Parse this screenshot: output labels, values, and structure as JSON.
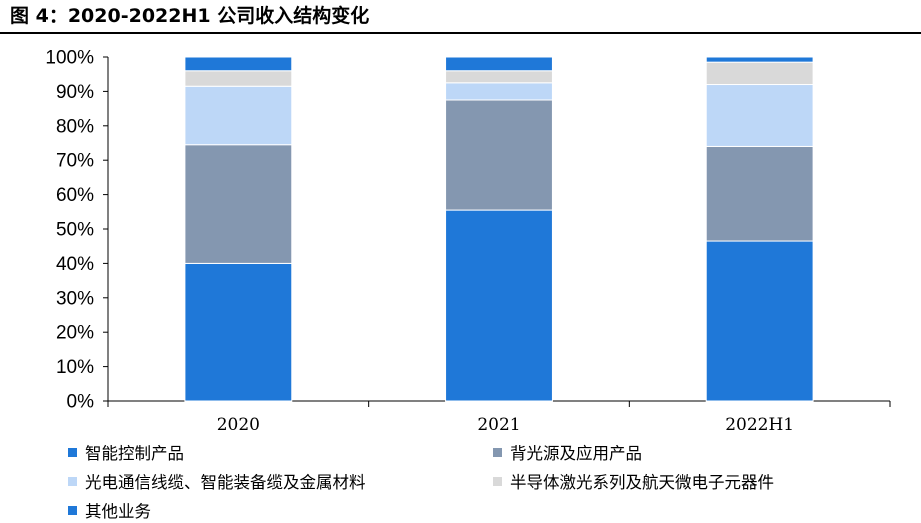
{
  "title": "图 4：2020-2022H1 公司收入结构变化",
  "chart_data": {
    "type": "bar",
    "stacked": true,
    "categories": [
      "2020",
      "2021",
      "2022H1"
    ],
    "series": [
      {
        "name": "智能控制产品",
        "color": "#1f78d8",
        "values": [
          40,
          55.5,
          46.5
        ]
      },
      {
        "name": "背光源及应用产品",
        "color": "#8497b0",
        "values": [
          34.5,
          32,
          27.5
        ]
      },
      {
        "name": "光电通信线缆、智能装备缆及金属材料",
        "color": "#bdd7f7",
        "values": [
          17,
          5,
          18
        ]
      },
      {
        "name": "半导体激光系列及航天微电子元器件",
        "color": "#d9d9d9",
        "values": [
          4.5,
          3.5,
          6.5
        ]
      },
      {
        "name": "其他业务",
        "color": "#1f78d8",
        "values": [
          4,
          4,
          1.5
        ]
      }
    ],
    "ylim": [
      0,
      100
    ],
    "yticks": [
      "0%",
      "10%",
      "20%",
      "30%",
      "40%",
      "50%",
      "60%",
      "70%",
      "80%",
      "90%",
      "100%"
    ],
    "grid": false,
    "legend_position": "bottom"
  }
}
